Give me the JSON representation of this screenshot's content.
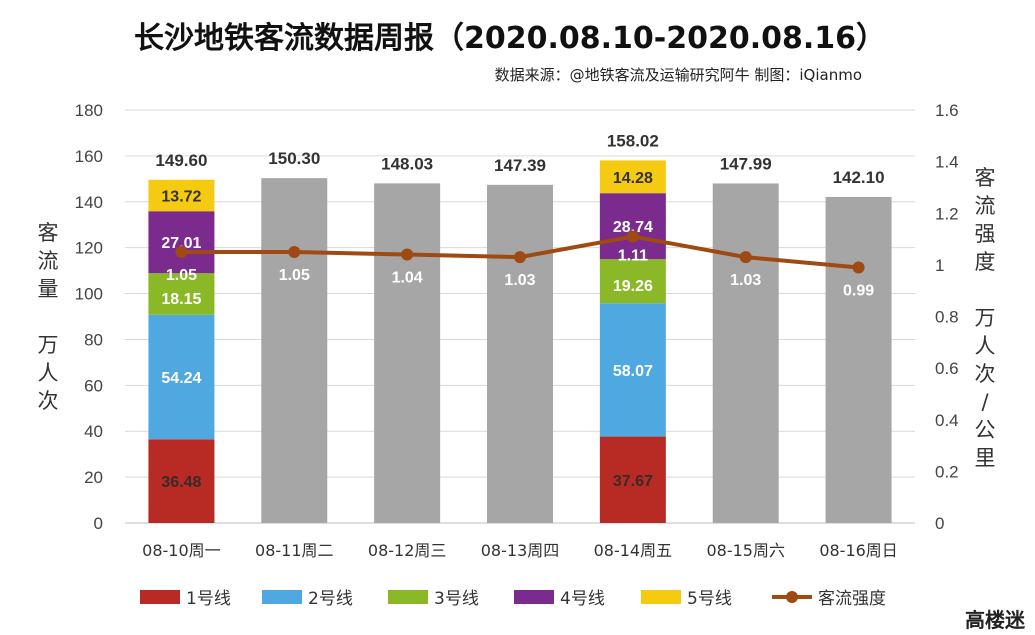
{
  "title": "长沙地铁客流数据周报（2020.08.10-2020.08.16）",
  "subtitle": "数据来源：@地铁客流及运输研究阿牛 制图：iQianmo",
  "watermark": "高楼迷",
  "colors": {
    "line1": "#B72B24",
    "line2": "#4FA8E0",
    "line3": "#8AB827",
    "line4": "#7B2A8E",
    "line5": "#F5CB12",
    "total": "#A6A6A6",
    "intensity": "#9E4A12"
  },
  "chart_data": {
    "type": "bar",
    "categories": [
      "08-10周一",
      "08-11周二",
      "08-12周三",
      "08-13周四",
      "08-14周五",
      "08-15周六",
      "08-16周日"
    ],
    "totals": [
      149.6,
      150.3,
      148.03,
      147.39,
      158.02,
      147.99,
      142.1
    ],
    "total_labels": [
      "149.60",
      "150.30",
      "148.03",
      "147.39",
      "158.02",
      "147.99",
      "142.10"
    ],
    "series": [
      {
        "name": "1号线",
        "values": [
          36.48,
          null,
          null,
          null,
          37.67,
          null,
          null
        ],
        "labels": [
          "36.48",
          "",
          "",
          "",
          "37.67",
          "",
          ""
        ]
      },
      {
        "name": "2号线",
        "values": [
          54.24,
          null,
          null,
          null,
          58.07,
          null,
          null
        ],
        "labels": [
          "54.24",
          "",
          "",
          "",
          "58.07",
          "",
          ""
        ]
      },
      {
        "name": "3号线",
        "values": [
          18.15,
          null,
          null,
          null,
          19.26,
          null,
          null
        ],
        "labels": [
          "18.15",
          "",
          "",
          "",
          "19.26",
          "",
          ""
        ]
      },
      {
        "name": "4号线",
        "values": [
          27.01,
          null,
          null,
          null,
          28.74,
          null,
          null
        ],
        "labels": [
          "27.01",
          "",
          "",
          "",
          "28.74",
          "",
          ""
        ]
      },
      {
        "name": "5号线",
        "values": [
          13.72,
          null,
          null,
          null,
          14.28,
          null,
          null
        ],
        "labels": [
          "13.72",
          "",
          "",
          "",
          "14.28",
          "",
          ""
        ]
      }
    ],
    "line_series": {
      "name": "客流强度",
      "values": [
        1.05,
        1.05,
        1.04,
        1.03,
        1.11,
        1.03,
        0.99
      ],
      "labels": [
        "1.05",
        "1.05",
        "1.04",
        "1.03",
        "1.11",
        "1.03",
        "0.99"
      ]
    },
    "y_left": {
      "label_lines": [
        "客",
        "流",
        "量",
        "",
        "万",
        "人",
        "次"
      ],
      "lim": [
        0,
        180
      ],
      "ticks": [
        "0",
        "20",
        "40",
        "60",
        "80",
        "100",
        "120",
        "140",
        "160",
        "180"
      ]
    },
    "y_right": {
      "label_lines": [
        "客",
        "流",
        "强",
        "度",
        "",
        "万",
        "人",
        "次",
        "/",
        "公",
        "里"
      ],
      "lim": [
        0,
        1.6
      ],
      "ticks": [
        "0",
        "0.2",
        "0.4",
        "0.6",
        "0.8",
        "1",
        "1.2",
        "1.4",
        "1.6"
      ]
    },
    "grid": true,
    "legend": "bottom"
  }
}
